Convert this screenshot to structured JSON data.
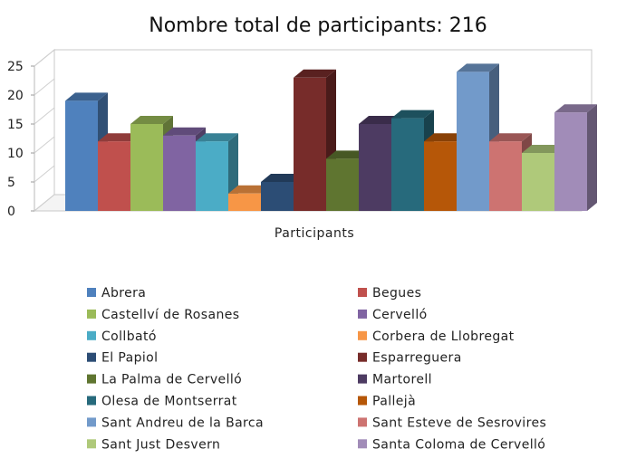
{
  "chart_data": {
    "type": "bar",
    "title": "Nombre total de participants: 216",
    "xlabel": "Participants",
    "ylabel": "",
    "ylim": [
      0,
      25
    ],
    "yticks": [
      0,
      5,
      10,
      15,
      20,
      25
    ],
    "grid": false,
    "legend_position": "bottom",
    "three_d": true,
    "series": [
      {
        "name": "Abrera",
        "value": 19,
        "color": "#4F81BD"
      },
      {
        "name": "Begues",
        "value": 12,
        "color": "#C0504D"
      },
      {
        "name": "Castellví de Rosanes",
        "value": 15,
        "color": "#9BBB59"
      },
      {
        "name": "Cervelló",
        "value": 13,
        "color": "#8064A2"
      },
      {
        "name": "Collbató",
        "value": 12,
        "color": "#4BACC6"
      },
      {
        "name": "Corbera de Llobregat",
        "value": 3,
        "color": "#F79646"
      },
      {
        "name": "El Papiol",
        "value": 5,
        "color": "#2C4D75"
      },
      {
        "name": "Esparreguera",
        "value": 23,
        "color": "#772C2A"
      },
      {
        "name": "La Palma de Cervelló",
        "value": 9,
        "color": "#5F7530"
      },
      {
        "name": "Martorell",
        "value": 15,
        "color": "#4D3B62"
      },
      {
        "name": "Olesa de Montserrat",
        "value": 16,
        "color": "#276A7C"
      },
      {
        "name": "Pallejà",
        "value": 12,
        "color": "#B65708"
      },
      {
        "name": "Sant Andreu de la Barca",
        "value": 24,
        "color": "#729ACA"
      },
      {
        "name": "Sant Esteve de Sesrovires",
        "value": 12,
        "color": "#CD7371"
      },
      {
        "name": "Sant Just Desvern",
        "value": 10,
        "color": "#AFC97A"
      },
      {
        "name": "Santa Coloma de Cervelló",
        "value": 17,
        "color": "#A18CB8"
      }
    ]
  }
}
